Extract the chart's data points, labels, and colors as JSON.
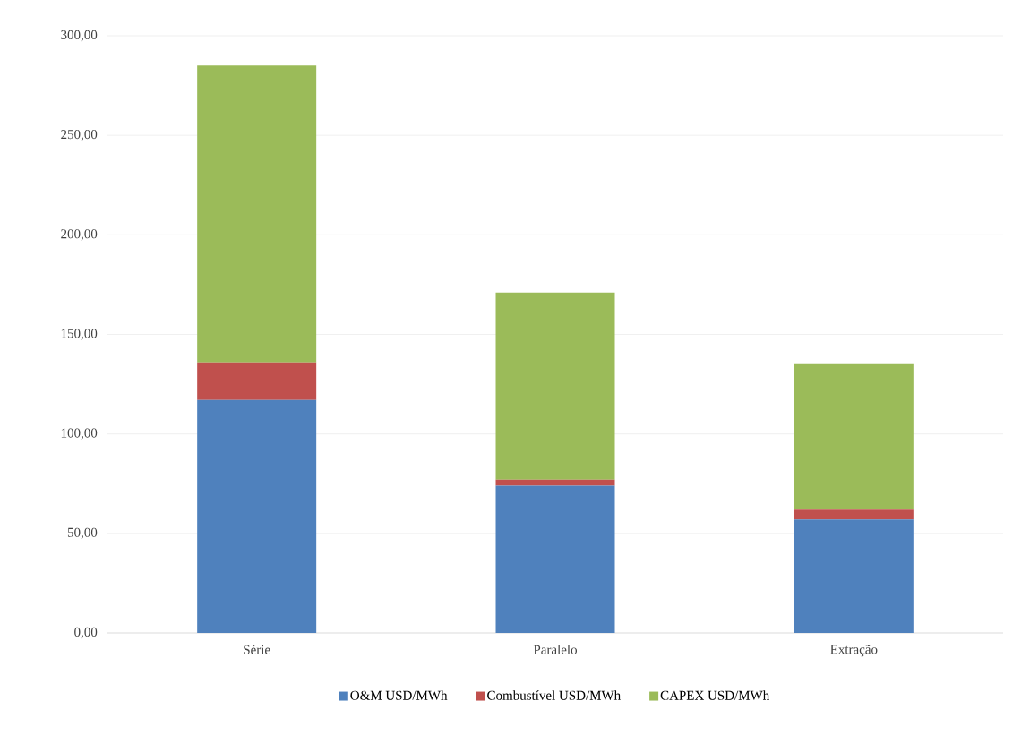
{
  "chart_data": {
    "type": "bar",
    "stacked": true,
    "categories": [
      "Série",
      "Paralelo",
      "Extração"
    ],
    "series": [
      {
        "name": "O&M USD/MWh",
        "color": "#4f81bd",
        "values": [
          117,
          74,
          57
        ]
      },
      {
        "name": "Combustível USD/MWh",
        "color": "#c0504d",
        "values": [
          19,
          3,
          5
        ]
      },
      {
        "name": "CAPEX USD/MWh",
        "color": "#9bbb59",
        "values": [
          149,
          94,
          73
        ]
      }
    ],
    "ylim": [
      0,
      300
    ],
    "yticks": [
      {
        "value": 0,
        "label": "0,00"
      },
      {
        "value": 50,
        "label": "50,00"
      },
      {
        "value": 100,
        "label": "100,00"
      },
      {
        "value": 150,
        "label": "150,00"
      },
      {
        "value": 200,
        "label": "200,00"
      },
      {
        "value": 250,
        "label": "250,00"
      },
      {
        "value": 300,
        "label": "300,00"
      }
    ],
    "grid": "y",
    "legend": "bottom"
  }
}
